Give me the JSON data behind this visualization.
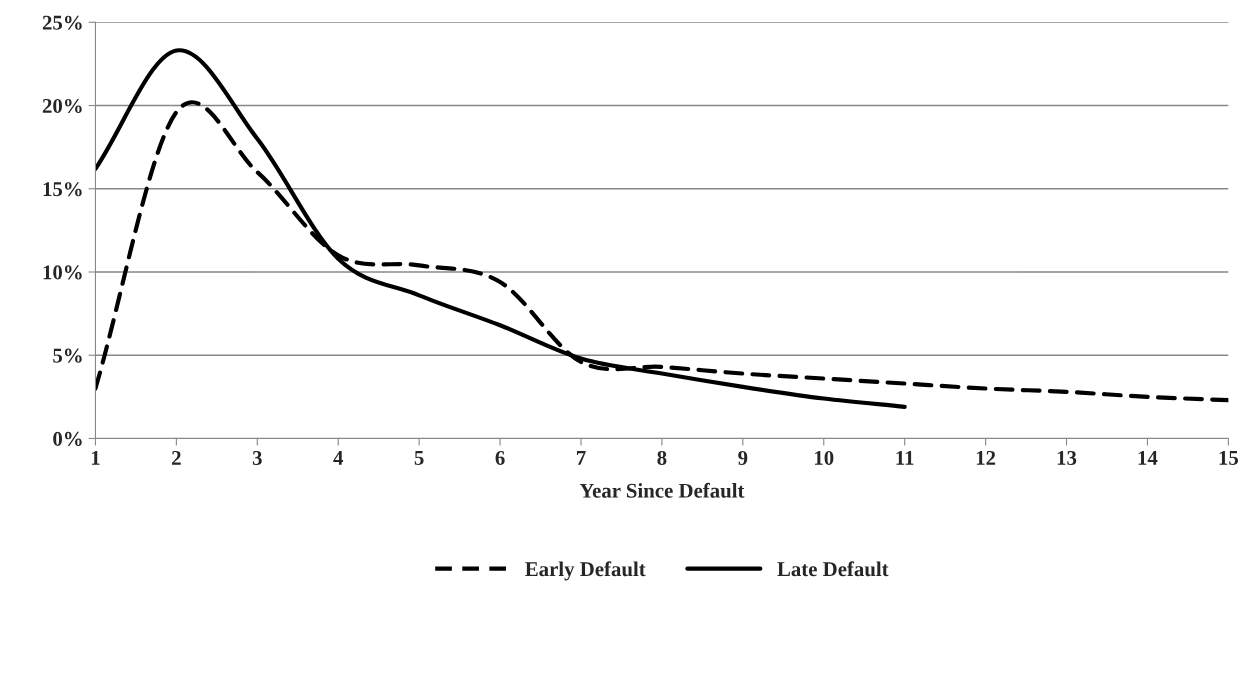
{
  "chart_data": {
    "type": "line",
    "xlabel": "Year Since Default",
    "x": [
      1,
      2,
      3,
      4,
      5,
      6,
      7,
      8,
      9,
      10,
      11,
      12,
      13,
      14,
      15
    ],
    "series": [
      {
        "name": "Early Default",
        "color": "#000000",
        "line_style": "dashed",
        "values": [
          3.0,
          19.6,
          16.0,
          11.0,
          10.4,
          9.4,
          4.6,
          4.3,
          3.9,
          3.6,
          3.3,
          3.0,
          2.8,
          2.5,
          2.3
        ]
      },
      {
        "name": "Late Default",
        "color": "#000000",
        "line_style": "solid",
        "values": [
          16.2,
          23.3,
          18.0,
          10.8,
          8.6,
          6.8,
          4.8,
          3.9,
          3.1,
          2.4,
          1.9,
          null,
          null,
          null,
          null
        ]
      }
    ],
    "xlim": [
      1,
      15
    ],
    "xticks": [
      1,
      2,
      3,
      4,
      5,
      6,
      7,
      8,
      9,
      10,
      11,
      12,
      13,
      14,
      15
    ],
    "ylim": [
      0,
      25
    ],
    "yticks": [
      {
        "value": 0,
        "label": "0%"
      },
      {
        "value": 5,
        "label": "5%"
      },
      {
        "value": 10,
        "label": "10%"
      },
      {
        "value": 15,
        "label": "15%"
      },
      {
        "value": 20,
        "label": "20%"
      },
      {
        "value": 25,
        "label": "25%"
      }
    ],
    "grid": "y",
    "legend": "bottom",
    "marker": "none"
  }
}
